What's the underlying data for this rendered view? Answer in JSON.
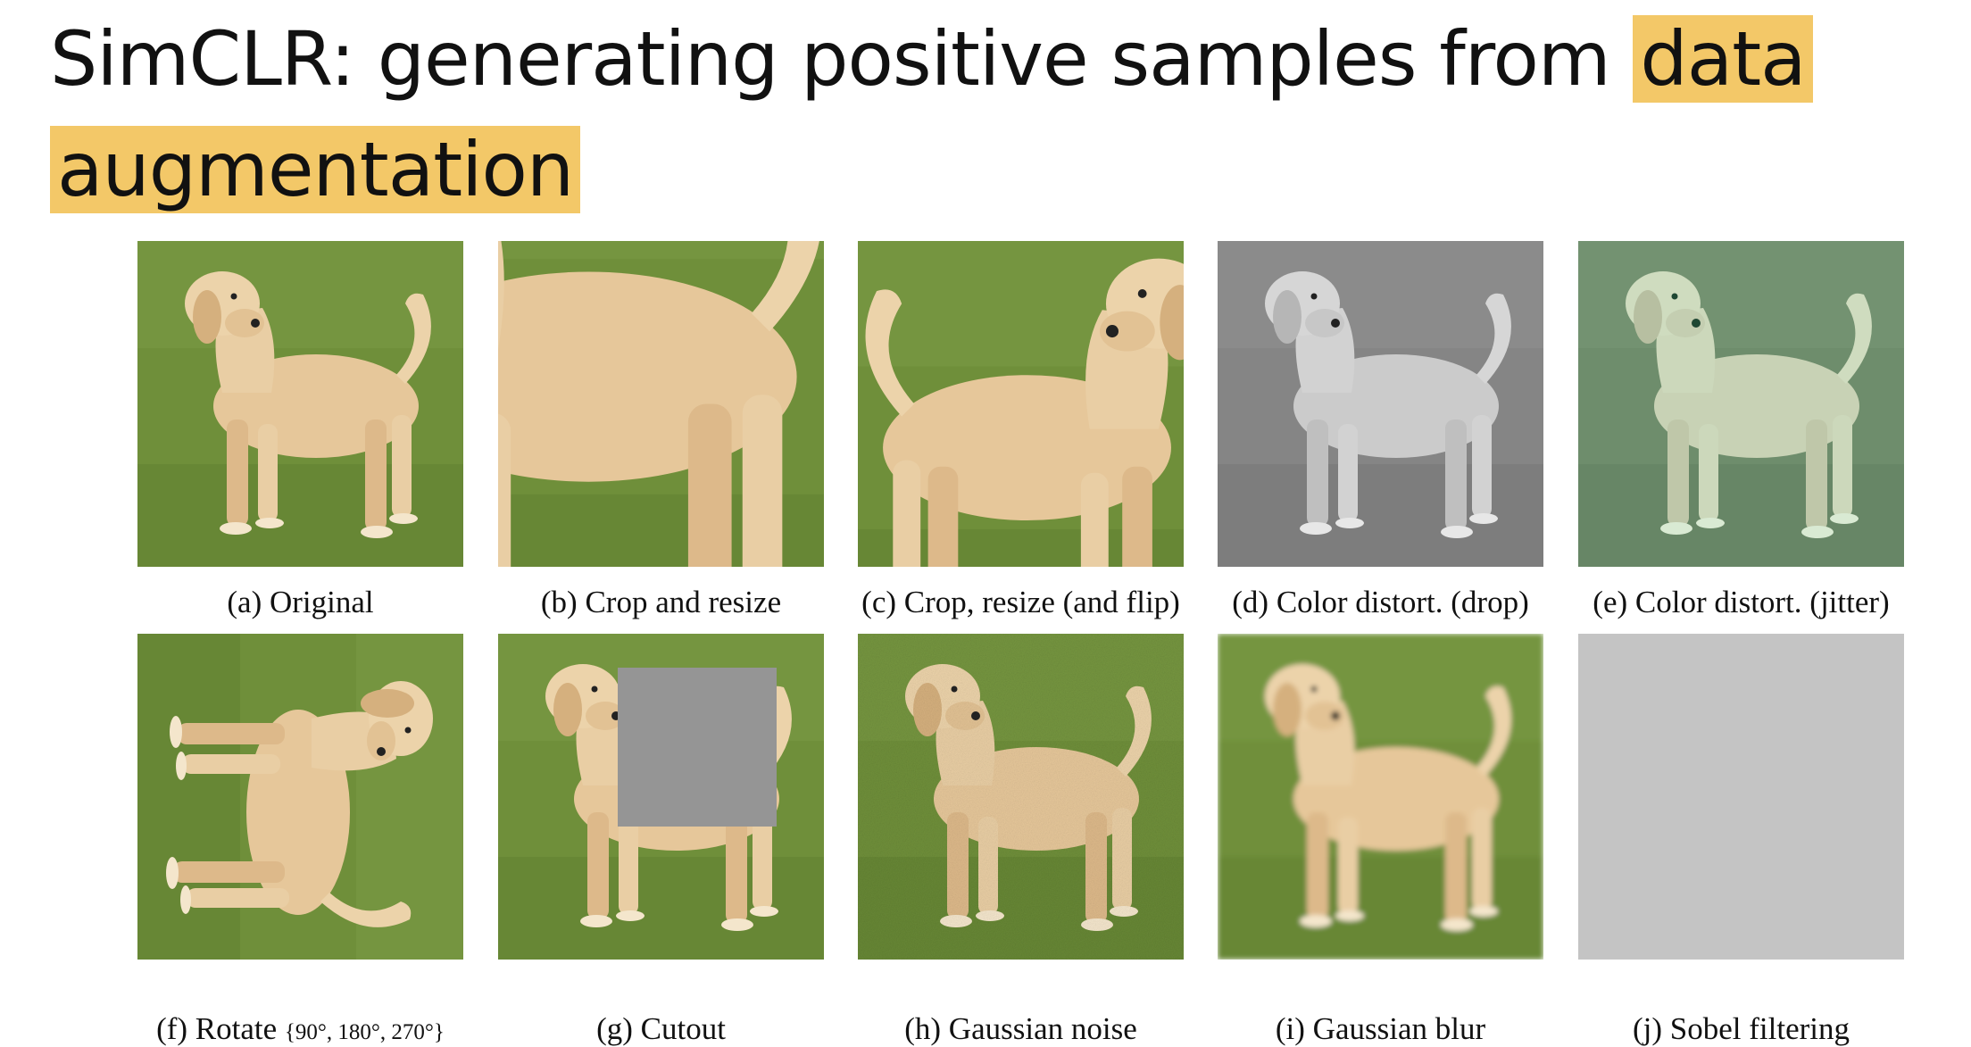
{
  "title": {
    "main": "SimCLR: generating positive samples from ",
    "highlight1": "data",
    "highlight2": "augmentation"
  },
  "panels": [
    {
      "caption": "(a) Original"
    },
    {
      "caption": "(b) Crop and resize"
    },
    {
      "caption": "(c) Crop, resize (and flip)"
    },
    {
      "caption": "(d) Color distort. (drop)"
    },
    {
      "caption": "(e) Color distort. (jitter)"
    },
    {
      "caption": "(f) Rotate",
      "caption_small": "{90°, 180°, 270°}"
    },
    {
      "caption": "(g) Cutout"
    },
    {
      "caption": "(h) Gaussian noise"
    },
    {
      "caption": "(i) Gaussian blur"
    },
    {
      "caption": "(j) Sobel filtering"
    }
  ],
  "colors": {
    "highlight": "#f3c868",
    "grass": "#6f8f3a",
    "dog": "#e6c79a",
    "gray_box": "#959595"
  }
}
